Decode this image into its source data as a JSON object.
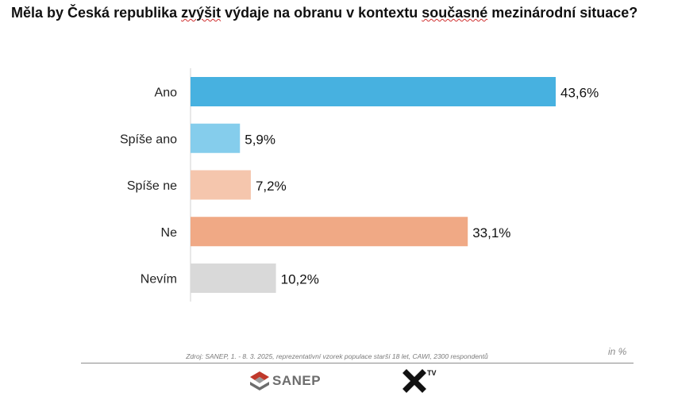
{
  "header": {
    "title_parts": [
      {
        "text": "Měla by Česká republika ",
        "spell": false
      },
      {
        "text": "zvýšit",
        "spell": true
      },
      {
        "text": " výdaje na obranu v kontextu ",
        "spell": false
      },
      {
        "text": "současné",
        "spell": true
      },
      {
        "text": " mezinárodní situace?",
        "spell": false
      }
    ]
  },
  "chart_data": {
    "type": "bar",
    "orientation": "horizontal",
    "categories": [
      "Ano",
      "Spíše ano",
      "Spíše ne",
      "Ne",
      "Nevím"
    ],
    "values": [
      43.6,
      5.9,
      7.2,
      33.1,
      10.2
    ],
    "value_labels": [
      "43,6%",
      "5,9%",
      "7,2%",
      "33,1%",
      "10,2%"
    ],
    "colors": [
      "#47b1e0",
      "#85cdec",
      "#f5c6ad",
      "#f0a985",
      "#d9d9d9"
    ],
    "xlim": [
      0,
      43.6
    ],
    "grid": false,
    "legend": "none",
    "unit_label": "in %"
  },
  "footer": {
    "source": "Zdroj: SANEP, 1. - 8. 3. 2025, reprezentativní vzorek populace starší 18 let, CAWI, 2300 respondentů",
    "unit_note": "in %",
    "sanep_logo_text": "SANEP",
    "xtv_logo_text": "TV"
  }
}
